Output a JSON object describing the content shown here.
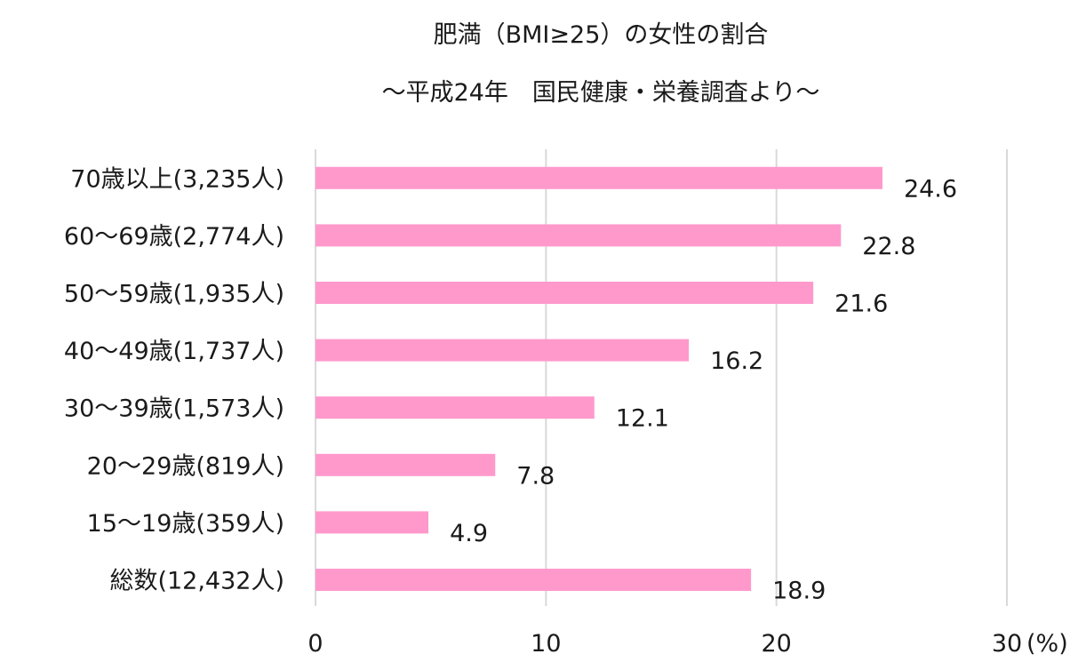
{
  "chart_data": {
    "type": "bar",
    "orientation": "horizontal",
    "title": "肥満（BMI≥25）の女性の割合",
    "subtitle": "～平成24年　国民健康・栄養調査より～",
    "categories": [
      "70歳以上(3,235人)",
      "60～69歳(2,774人)",
      "50～59歳(1,935人)",
      "40～49歳(1,737人)",
      "30～39歳(1,573人)",
      "20～29歳(819人)",
      "15～19歳(359人)",
      "総数(12,432人)"
    ],
    "values": [
      24.6,
      22.8,
      21.6,
      16.2,
      12.1,
      7.8,
      4.9,
      18.9
    ],
    "value_labels": [
      "24.6",
      "22.8",
      "21.6",
      "16.2",
      "12.1",
      "7.8",
      "4.9",
      "18.9"
    ],
    "x_ticks": [
      "0",
      "10",
      "20",
      "30"
    ],
    "x_unit": "(%)",
    "xlim": [
      0,
      30
    ],
    "grid": true,
    "legend": false,
    "bar_color": "#ff99cc",
    "grid_color": "#d9d9d9",
    "text_color": "#1a1a1a"
  }
}
